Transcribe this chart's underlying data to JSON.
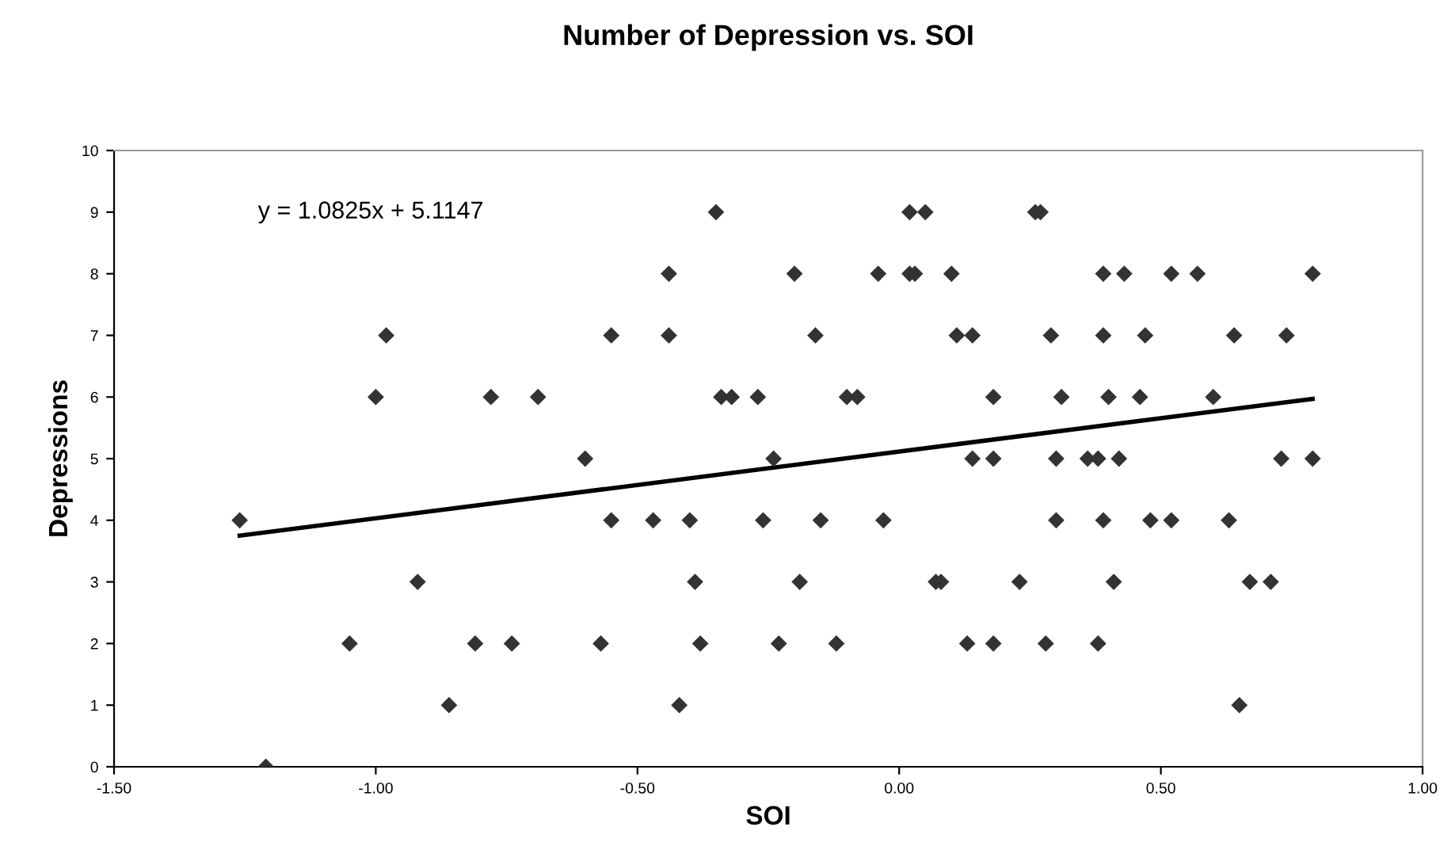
{
  "chart_data": {
    "type": "scatter",
    "title": "Number of Depression vs. SOI",
    "xlabel": "SOI",
    "ylabel": "Depressions",
    "xlim": [
      -1.5,
      1.0
    ],
    "xticks": [
      {
        "value": -1.5,
        "label": "-1.50"
      },
      {
        "value": -1.0,
        "label": "-1.00"
      },
      {
        "value": -0.5,
        "label": "-0.50"
      },
      {
        "value": 0.0,
        "label": "0.00"
      },
      {
        "value": 0.5,
        "label": "0.50"
      },
      {
        "value": 1.0,
        "label": "1.00"
      }
    ],
    "ylim": [
      0,
      10
    ],
    "yticks": [
      0,
      1,
      2,
      3,
      4,
      5,
      6,
      7,
      8,
      9,
      10
    ],
    "grid": false,
    "annotations": [
      "y = 1.0825x + 5.1147"
    ],
    "series": [
      {
        "color": "#333333",
        "marker": "diamond",
        "x": [
          -1.26,
          -1.21,
          -1.05,
          -1.0,
          -0.98,
          -0.92,
          -0.86,
          -0.81,
          -0.78,
          -0.74,
          -0.69,
          -0.6,
          -0.57,
          -0.55,
          -0.55,
          -0.47,
          -0.44,
          -0.44,
          -0.42,
          -0.4,
          -0.39,
          -0.38,
          -0.35,
          -0.34,
          -0.32,
          -0.27,
          -0.26,
          -0.24,
          -0.23,
          -0.2,
          -0.19,
          -0.16,
          -0.15,
          -0.12,
          -0.1,
          -0.08,
          -0.04,
          -0.03,
          0.02,
          0.03,
          0.02,
          0.05,
          0.07,
          0.08,
          0.1,
          0.11,
          0.14,
          0.18,
          0.14,
          0.18,
          0.13,
          0.18,
          0.23,
          0.26,
          0.27,
          0.29,
          0.31,
          0.3,
          0.3,
          0.28,
          0.39,
          0.43,
          0.39,
          0.47,
          0.4,
          0.46,
          0.36,
          0.38,
          0.42,
          0.39,
          0.48,
          0.52,
          0.41,
          0.38,
          0.52,
          0.57,
          0.6,
          0.64,
          0.63,
          0.65,
          0.67,
          0.71,
          0.74,
          0.73,
          0.79,
          0.79
        ],
        "values": [
          4,
          0,
          2,
          6,
          7,
          3,
          1,
          2,
          6,
          2,
          6,
          5,
          2,
          7,
          4,
          4,
          8,
          7,
          1,
          4,
          3,
          2,
          9,
          6,
          6,
          6,
          4,
          5,
          2,
          8,
          3,
          7,
          4,
          2,
          6,
          6,
          8,
          4,
          8,
          8,
          9,
          9,
          3,
          3,
          8,
          7,
          7,
          6,
          5,
          5,
          2,
          2,
          3,
          9,
          9,
          7,
          6,
          5,
          4,
          2,
          8,
          8,
          7,
          7,
          6,
          6,
          5,
          5,
          5,
          4,
          4,
          4,
          3,
          2,
          8,
          8,
          6,
          7,
          4,
          1,
          3,
          3,
          7,
          5,
          5,
          8
        ]
      },
      {
        "type": "line",
        "color": "#000000",
        "marker": "none",
        "line_style": "solid",
        "x": [
          -1.26,
          0.79
        ],
        "values": [
          3.75,
          5.97
        ]
      }
    ]
  }
}
